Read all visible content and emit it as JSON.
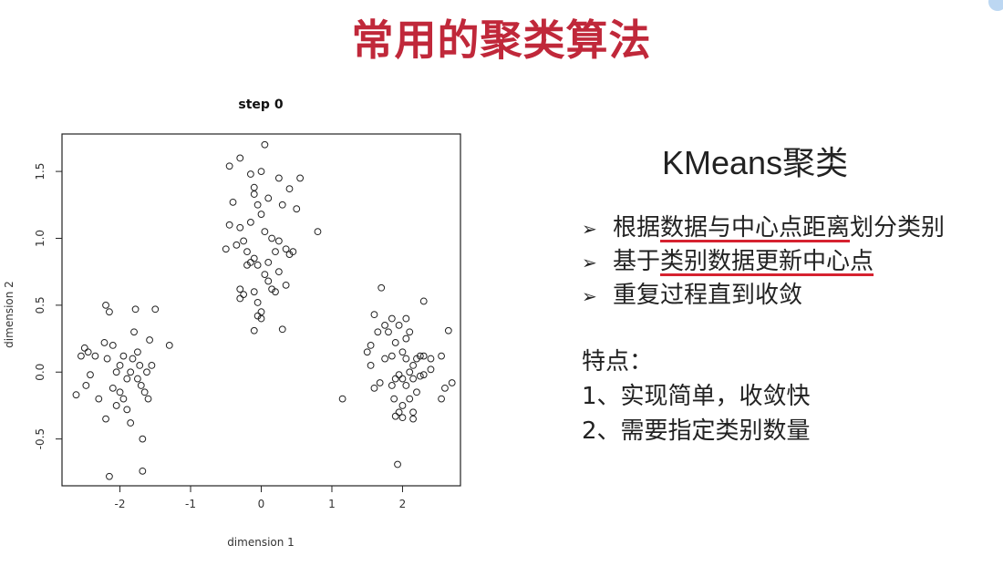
{
  "title": "常用的聚类算法",
  "right_panel": {
    "subtitle": "KMeans聚类",
    "bullets": [
      {
        "before": "根据",
        "underlined": "数据与中心点距离",
        "after": "划分类别"
      },
      {
        "before": "基于",
        "underlined": "类别数据更新中心点",
        "after": ""
      },
      {
        "before": "重复过程直到收敛",
        "underlined": "",
        "after": ""
      }
    ],
    "features_label": "特点：",
    "features": [
      "1、实现简单，收敛快",
      "2、需要指定类别数量"
    ]
  },
  "accent_color": "#c0283a",
  "underline_color": "#d62230",
  "chart_data": {
    "type": "scatter",
    "title": "step 0",
    "xlabel": "dimension 1",
    "ylabel": "dimension 2",
    "xlim": [
      -2.82,
      2.82
    ],
    "ylim": [
      -0.85,
      1.78
    ],
    "xticks": [
      -2,
      -1,
      0,
      1,
      2
    ],
    "yticks": [
      -0.5,
      0.0,
      0.5,
      1.0,
      1.5
    ],
    "xtick_labels": [
      "-2",
      "-1",
      "0",
      "1",
      "2"
    ],
    "ytick_labels": [
      "-0.5",
      "0.0",
      "0.5",
      "1.0",
      "1.5"
    ],
    "marker": "open-circle",
    "grid": false,
    "points": [
      [
        -2.5,
        0.18
      ],
      [
        -2.45,
        0.15
      ],
      [
        -2.55,
        0.12
      ],
      [
        -2.48,
        -0.1
      ],
      [
        -2.62,
        -0.17
      ],
      [
        -2.35,
        0.12
      ],
      [
        -2.3,
        -0.2
      ],
      [
        -2.42,
        -0.02
      ],
      [
        -2.2,
        0.5
      ],
      [
        -2.15,
        0.45
      ],
      [
        -2.22,
        0.22
      ],
      [
        -2.18,
        0.1
      ],
      [
        -2.1,
        0.2
      ],
      [
        -2.05,
        0.0
      ],
      [
        -2.1,
        -0.12
      ],
      [
        -2.0,
        -0.15
      ],
      [
        -2.05,
        -0.25
      ],
      [
        -1.95,
        -0.2
      ],
      [
        -1.9,
        -0.05
      ],
      [
        -1.85,
        -0.38
      ],
      [
        -1.82,
        0.1
      ],
      [
        -1.78,
        0.47
      ],
      [
        -1.75,
        0.15
      ],
      [
        -1.72,
        0.05
      ],
      [
        -1.7,
        -0.1
      ],
      [
        -1.65,
        -0.15
      ],
      [
        -1.62,
        0.0
      ],
      [
        -1.6,
        -0.2
      ],
      [
        -1.55,
        0.05
      ],
      [
        -1.58,
        0.24
      ],
      [
        -1.5,
        0.47
      ],
      [
        -1.3,
        0.2
      ],
      [
        -1.68,
        -0.5
      ],
      [
        -1.68,
        -0.74
      ],
      [
        -2.15,
        -0.78
      ],
      [
        -2.2,
        -0.35
      ],
      [
        -1.85,
        0.0
      ],
      [
        -1.95,
        0.12
      ],
      [
        -1.8,
        0.3
      ],
      [
        -2.0,
        0.05
      ],
      [
        -1.9,
        -0.28
      ],
      [
        -1.75,
        -0.05
      ],
      [
        0.05,
        1.7
      ],
      [
        -0.45,
        1.54
      ],
      [
        -0.3,
        1.6
      ],
      [
        -0.15,
        1.48
      ],
      [
        -0.1,
        1.38
      ],
      [
        0.0,
        1.5
      ],
      [
        0.25,
        1.45
      ],
      [
        0.4,
        1.37
      ],
      [
        0.55,
        1.45
      ],
      [
        -0.4,
        1.27
      ],
      [
        -0.1,
        1.33
      ],
      [
        -0.05,
        1.25
      ],
      [
        0.1,
        1.3
      ],
      [
        0.3,
        1.25
      ],
      [
        0.5,
        1.22
      ],
      [
        -0.45,
        1.1
      ],
      [
        -0.3,
        1.08
      ],
      [
        -0.25,
        0.98
      ],
      [
        -0.15,
        1.12
      ],
      [
        0.0,
        1.18
      ],
      [
        0.05,
        1.05
      ],
      [
        0.15,
        1.0
      ],
      [
        0.25,
        0.98
      ],
      [
        0.2,
        0.9
      ],
      [
        0.35,
        0.92
      ],
      [
        0.45,
        0.9
      ],
      [
        0.8,
        1.05
      ],
      [
        -0.5,
        0.92
      ],
      [
        -0.35,
        0.95
      ],
      [
        -0.2,
        0.9
      ],
      [
        -0.1,
        0.85
      ],
      [
        -0.05,
        0.8
      ],
      [
        0.1,
        0.82
      ],
      [
        0.25,
        0.75
      ],
      [
        0.35,
        0.65
      ],
      [
        0.4,
        0.88
      ],
      [
        -0.2,
        0.8
      ],
      [
        -0.15,
        0.82
      ],
      [
        0.05,
        0.73
      ],
      [
        0.1,
        0.68
      ],
      [
        0.15,
        0.62
      ],
      [
        -0.3,
        0.62
      ],
      [
        -0.1,
        0.6
      ],
      [
        -0.05,
        0.52
      ],
      [
        -0.3,
        0.55
      ],
      [
        -0.25,
        0.58
      ],
      [
        0.0,
        0.45
      ],
      [
        -0.05,
        0.42
      ],
      [
        0.0,
        0.4
      ],
      [
        0.3,
        0.32
      ],
      [
        -0.1,
        0.31
      ],
      [
        0.2,
        0.6
      ],
      [
        1.7,
        0.63
      ],
      [
        1.6,
        0.43
      ],
      [
        1.75,
        0.35
      ],
      [
        1.65,
        0.3
      ],
      [
        1.8,
        0.3
      ],
      [
        1.55,
        0.2
      ],
      [
        1.5,
        0.15
      ],
      [
        1.55,
        0.05
      ],
      [
        1.68,
        -0.08
      ],
      [
        1.6,
        -0.12
      ],
      [
        1.75,
        0.1
      ],
      [
        1.85,
        0.4
      ],
      [
        1.95,
        0.35
      ],
      [
        1.9,
        0.22
      ],
      [
        2.0,
        0.15
      ],
      [
        1.85,
        0.12
      ],
      [
        2.05,
        0.1
      ],
      [
        2.1,
        0.0
      ],
      [
        2.15,
        0.05
      ],
      [
        2.25,
        0.12
      ],
      [
        2.3,
        0.12
      ],
      [
        2.2,
        0.1
      ],
      [
        2.05,
        0.25
      ],
      [
        2.1,
        0.3
      ],
      [
        1.9,
        -0.05
      ],
      [
        1.95,
        -0.02
      ],
      [
        2.0,
        -0.05
      ],
      [
        1.85,
        -0.1
      ],
      [
        2.05,
        -0.1
      ],
      [
        2.15,
        -0.05
      ],
      [
        2.25,
        -0.03
      ],
      [
        2.2,
        -0.15
      ],
      [
        2.1,
        -0.2
      ],
      [
        2.0,
        -0.25
      ],
      [
        1.88,
        -0.2
      ],
      [
        1.95,
        -0.3
      ],
      [
        2.0,
        -0.34
      ],
      [
        2.15,
        -0.3
      ],
      [
        2.15,
        -0.35
      ],
      [
        1.9,
        -0.33
      ],
      [
        2.3,
        0.53
      ],
      [
        2.55,
        0.12
      ],
      [
        2.65,
        0.31
      ],
      [
        2.4,
        0.02
      ],
      [
        2.6,
        -0.12
      ],
      [
        2.7,
        -0.08
      ],
      [
        2.3,
        -0.02
      ],
      [
        2.55,
        -0.2
      ],
      [
        1.93,
        -0.69
      ],
      [
        1.15,
        -0.2
      ],
      [
        2.05,
        0.4
      ],
      [
        2.4,
        0.1
      ]
    ]
  }
}
